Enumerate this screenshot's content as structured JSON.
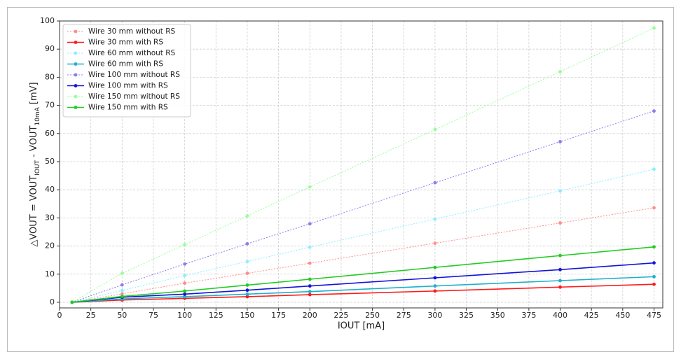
{
  "chart_data": {
    "type": "line",
    "xlabel": "IOUT [mA]",
    "ylabel": [
      "△VOUT = VOUT",
      "IOUT",
      " - VOUT",
      "10mA",
      " [mV]"
    ],
    "x": [
      10,
      50,
      100,
      150,
      200,
      300,
      400,
      475
    ],
    "series": [
      {
        "name": "Wire 30 mm without RS",
        "color": "#ff8c8c",
        "linestyle": "dotted",
        "values": [
          0,
          3,
          6.8,
          10.3,
          13.9,
          21,
          28.2,
          33.6
        ]
      },
      {
        "name": "Wire 30 mm with RS",
        "color": "#ff1a1a",
        "linestyle": "solid",
        "values": [
          0,
          0.8,
          1.4,
          2,
          2.7,
          4,
          5.4,
          6.4
        ]
      },
      {
        "name": "Wire 60 mm without RS",
        "color": "#8ceeff",
        "linestyle": "dotted",
        "values": [
          0,
          4.2,
          9.5,
          14.5,
          19.6,
          29.6,
          39.6,
          47.3
        ]
      },
      {
        "name": "Wire 60 mm with RS",
        "color": "#1fb0cc",
        "linestyle": "solid",
        "values": [
          0,
          1.2,
          2,
          2.9,
          3.8,
          5.8,
          7.7,
          9.1
        ]
      },
      {
        "name": "Wire 100 mm without RS",
        "color": "#8a7cf0",
        "linestyle": "dotted",
        "values": [
          0,
          6.2,
          13.6,
          20.8,
          27.9,
          42.5,
          57.1,
          68
        ]
      },
      {
        "name": "Wire 100 mm with RS",
        "color": "#1414d8",
        "linestyle": "solid",
        "values": [
          0,
          1.8,
          2.9,
          4.3,
          5.8,
          8.7,
          11.6,
          14
        ]
      },
      {
        "name": "Wire 150 mm without RS",
        "color": "#98ff98",
        "linestyle": "dotted",
        "values": [
          0,
          10.3,
          20.5,
          30.7,
          41,
          61.4,
          82,
          97.5
        ]
      },
      {
        "name": "Wire 150 mm with RS",
        "color": "#22cc22",
        "linestyle": "solid",
        "values": [
          0,
          2.1,
          4,
          6.1,
          8.2,
          12.4,
          16.6,
          19.7
        ]
      }
    ],
    "xlim": [
      0,
      482
    ],
    "ylim": [
      -2,
      100
    ],
    "xticks": [
      0,
      25,
      50,
      75,
      100,
      125,
      150,
      175,
      200,
      225,
      250,
      275,
      300,
      325,
      350,
      375,
      400,
      425,
      450,
      475
    ],
    "yticks": [
      0,
      10,
      20,
      30,
      40,
      50,
      60,
      70,
      80,
      90,
      100
    ],
    "grid": true,
    "legend": "upper-left"
  }
}
